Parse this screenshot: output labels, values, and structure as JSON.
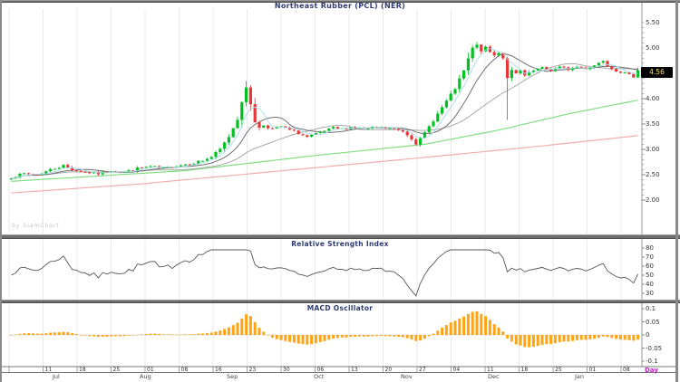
{
  "chart_data": {
    "type": "candlestick",
    "title": "Northeast Rubber (PCL) (NER)",
    "timeframe": "Day",
    "legend_position": "none",
    "grid": "vertical-only",
    "price": {
      "num_candles": 145,
      "axis_values": [
        5.5,
        5.0,
        4.5,
        4.0,
        3.5,
        3.0,
        2.5,
        2.0
      ],
      "ylim": [
        1.95,
        5.75
      ],
      "current_price": "4.56",
      "close_keypoints": [
        [
          0,
          2.45
        ],
        [
          3,
          2.52
        ],
        [
          6,
          2.5
        ],
        [
          9,
          2.6
        ],
        [
          12,
          2.68
        ],
        [
          14,
          2.6
        ],
        [
          17,
          2.55
        ],
        [
          20,
          2.52
        ],
        [
          23,
          2.58
        ],
        [
          26,
          2.55
        ],
        [
          29,
          2.62
        ],
        [
          32,
          2.66
        ],
        [
          35,
          2.62
        ],
        [
          38,
          2.68
        ],
        [
          41,
          2.72
        ],
        [
          44,
          2.78
        ],
        [
          46,
          2.85
        ],
        [
          48,
          3.0
        ],
        [
          50,
          3.25
        ],
        [
          52,
          3.6
        ],
        [
          53,
          3.95
        ],
        [
          54,
          4.2
        ],
        [
          55,
          3.9
        ],
        [
          56,
          3.55
        ],
        [
          57,
          3.42
        ],
        [
          58,
          3.48
        ],
        [
          60,
          3.4
        ],
        [
          62,
          3.45
        ],
        [
          64,
          3.38
        ],
        [
          66,
          3.32
        ],
        [
          68,
          3.24
        ],
        [
          70,
          3.3
        ],
        [
          72,
          3.36
        ],
        [
          74,
          3.42
        ],
        [
          76,
          3.4
        ],
        [
          78,
          3.44
        ],
        [
          80,
          3.42
        ],
        [
          82,
          3.4
        ],
        [
          84,
          3.44
        ],
        [
          86,
          3.42
        ],
        [
          88,
          3.4
        ],
        [
          90,
          3.36
        ],
        [
          92,
          3.22
        ],
        [
          93,
          3.12
        ],
        [
          94,
          3.2
        ],
        [
          95,
          3.32
        ],
        [
          96,
          3.45
        ],
        [
          98,
          3.7
        ],
        [
          100,
          3.95
        ],
        [
          102,
          4.2
        ],
        [
          104,
          4.55
        ],
        [
          105,
          4.78
        ],
        [
          106,
          5.0
        ],
        [
          107,
          5.05
        ],
        [
          108,
          4.95
        ],
        [
          109,
          5.0
        ],
        [
          110,
          4.92
        ],
        [
          111,
          4.85
        ],
        [
          112,
          4.92
        ],
        [
          113,
          4.8
        ],
        [
          114,
          4.42
        ],
        [
          115,
          4.55
        ],
        [
          116,
          4.48
        ],
        [
          117,
          4.55
        ],
        [
          118,
          4.45
        ],
        [
          119,
          4.5
        ],
        [
          120,
          4.55
        ],
        [
          122,
          4.6
        ],
        [
          124,
          4.56
        ],
        [
          126,
          4.62
        ],
        [
          128,
          4.58
        ],
        [
          130,
          4.63
        ],
        [
          132,
          4.6
        ],
        [
          134,
          4.66
        ],
        [
          136,
          4.76
        ],
        [
          137,
          4.66
        ],
        [
          138,
          4.6
        ],
        [
          139,
          4.56
        ],
        [
          141,
          4.5
        ],
        [
          142,
          4.46
        ],
        [
          143,
          4.44
        ],
        [
          144,
          4.56
        ]
      ],
      "wick_highs": [
        [
          54,
          4.35
        ],
        [
          107,
          5.12
        ]
      ],
      "wick_lows": [
        [
          114,
          3.58
        ]
      ],
      "ma_green_keypoints": [
        [
          0,
          2.37
        ],
        [
          40,
          2.58
        ],
        [
          70,
          2.88
        ],
        [
          95,
          3.1
        ],
        [
          112,
          3.38
        ],
        [
          128,
          3.7
        ],
        [
          144,
          3.97
        ]
      ],
      "ma_pink_keypoints": [
        [
          0,
          2.14
        ],
        [
          30,
          2.32
        ],
        [
          60,
          2.56
        ],
        [
          90,
          2.8
        ],
        [
          120,
          3.05
        ],
        [
          144,
          3.27
        ]
      ],
      "colors": {
        "up": "#00c022",
        "down": "#e83535",
        "ma_fast": "#a5dbe8",
        "ma_mid": "#6f6f6f",
        "ma_slow": "#a9a9a9",
        "ma_green": "#82dd82",
        "ma_pink": "#f2aeae"
      }
    },
    "rsi": {
      "title": "Relative Strength Index",
      "period": 14,
      "axis_values": [
        80,
        70,
        60,
        50,
        40,
        30
      ],
      "color": "#555555"
    },
    "macd": {
      "title": "MACD Oscillator",
      "axis_values": [
        0.1,
        0.05,
        0,
        -0.05,
        -0.1
      ],
      "max_hist": 0.09,
      "color": "#ffa515"
    },
    "xaxis": {
      "day_labels": [
        "11",
        "18",
        "25",
        "01",
        "08",
        "16",
        "23",
        "30",
        "06",
        "13",
        "20",
        "27",
        "04",
        "11",
        "18",
        "25",
        "01",
        "08"
      ],
      "month_labels": [
        "Jul",
        "Aug",
        "Sep",
        "Oct",
        "Nov",
        "Dec",
        "Jan"
      ]
    }
  },
  "watermark": "by SiamChart",
  "accent_colors": {
    "title": "#2f3c72",
    "timeframe": "#cc22cc",
    "grid": "#e9e9e9"
  }
}
